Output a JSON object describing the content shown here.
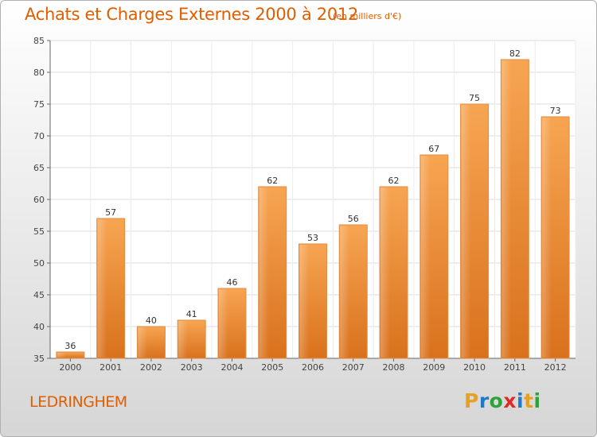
{
  "chart_data": {
    "type": "bar",
    "title": "Achats et Charges Externes 2000 à 2012",
    "subtitle": "(en milliers d'€)",
    "categories": [
      "2000",
      "2001",
      "2002",
      "2003",
      "2004",
      "2005",
      "2006",
      "2007",
      "2008",
      "2009",
      "2010",
      "2011",
      "2012"
    ],
    "values": [
      36,
      57,
      40,
      41,
      46,
      62,
      53,
      56,
      62,
      67,
      75,
      82,
      73
    ],
    "ylim": [
      35,
      85
    ],
    "yticks": [
      35,
      40,
      45,
      50,
      55,
      60,
      65,
      70,
      75,
      80,
      85
    ],
    "grid": true,
    "bar_color": "#f08a2c",
    "xlabel": "",
    "ylabel": ""
  },
  "footer": {
    "commune": "LEDRINGHEM",
    "logo_letters": [
      "P",
      "r",
      "o",
      "x",
      "i",
      "t",
      "i"
    ],
    "logo_colors": [
      "#e8a020",
      "#1f78c8",
      "#2da13a",
      "#e02a2a",
      "#1f78c8",
      "#e8a020",
      "#2da13a"
    ]
  }
}
